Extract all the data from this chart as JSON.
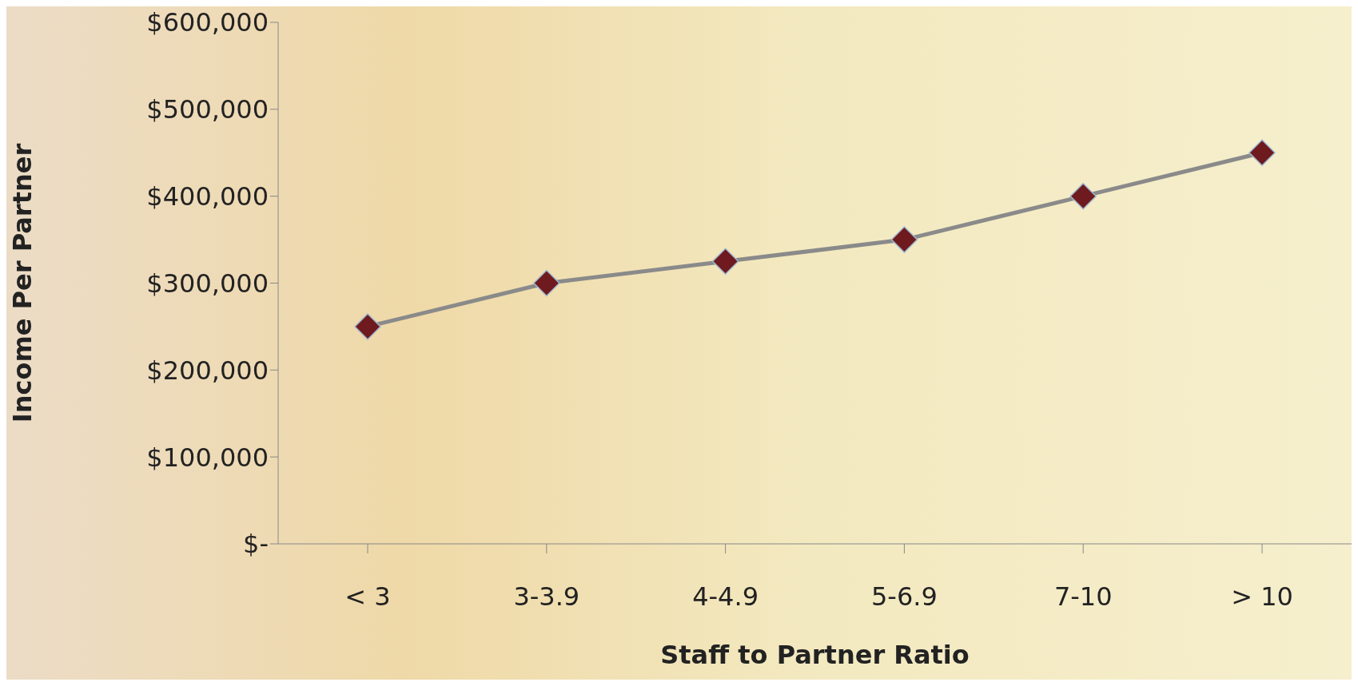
{
  "chart_data": {
    "type": "line",
    "xlabel": "Staff to Partner Ratio",
    "ylabel": "Income Per Partner",
    "categories": [
      "< 3",
      "3-3.9",
      "4-4.9",
      "5-6.9",
      "7-10",
      "> 10"
    ],
    "series": [
      {
        "color": "#6e1a1f",
        "values": [
          250000,
          300000,
          325000,
          350000,
          400000,
          450000
        ]
      }
    ],
    "ylim": [
      0,
      600000
    ],
    "yticks": [
      {
        "value": 0,
        "label": "$-"
      },
      {
        "value": 100000,
        "label": "$100,000"
      },
      {
        "value": 200000,
        "label": "$200,000"
      },
      {
        "value": 300000,
        "label": "$300,000"
      },
      {
        "value": 400000,
        "label": "$400,000"
      },
      {
        "value": 500000,
        "label": "$500,000"
      },
      {
        "value": 600000,
        "label": "$600,000"
      }
    ],
    "grid": false,
    "legend": false,
    "marker": "diamond",
    "line_style": "solid"
  }
}
